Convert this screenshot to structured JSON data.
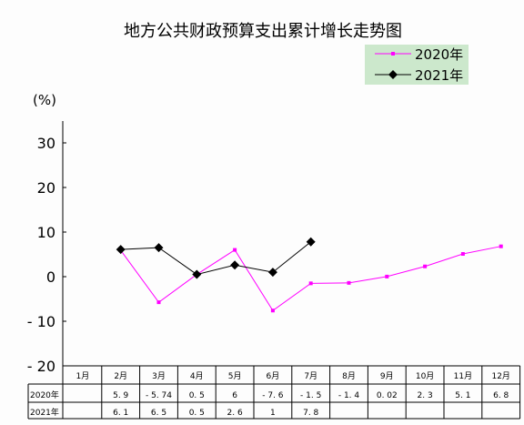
{
  "chart_data": {
    "type": "line",
    "title": "地方公共财政预算支出累计增长走势图",
    "ylabel": "(%)",
    "ylim": [
      -20,
      30
    ],
    "yticks": [
      30,
      20,
      10,
      0,
      -10,
      -20
    ],
    "ytick_labels": [
      "30",
      "20",
      "10",
      "0",
      "- 10",
      "- 20"
    ],
    "categories": [
      "1月",
      "2月",
      "3月",
      "4月",
      "5月",
      "6月",
      "7月",
      "8月",
      "9月",
      "10月",
      "11月",
      "12月"
    ],
    "legend_position": "top-right",
    "series": [
      {
        "name": "2020年",
        "color": "#ff00ff",
        "marker": "small-square",
        "values": [
          null,
          5.9,
          -5.74,
          0.5,
          6,
          -7.6,
          -1.5,
          -1.4,
          0.02,
          2.3,
          5.1,
          6.8
        ],
        "labels": [
          "",
          "5. 9",
          "- 5. 74",
          "0. 5",
          "6",
          "- 7. 6",
          "- 1. 5",
          "- 1. 4",
          "0. 02",
          "2. 3",
          "5. 1",
          "6. 8"
        ]
      },
      {
        "name": "2021年",
        "color": "#000000",
        "marker": "diamond",
        "values": [
          null,
          6.1,
          6.5,
          0.5,
          2.6,
          1,
          7.8,
          null,
          null,
          null,
          null,
          null
        ],
        "labels": [
          "",
          "6. 1",
          "6. 5",
          "0. 5",
          "2. 6",
          "1",
          "7. 8",
          "",
          "",
          "",
          "",
          ""
        ]
      }
    ],
    "grid": false,
    "data_table": true
  },
  "colors": {
    "legend_bg": "#cce8cc"
  }
}
